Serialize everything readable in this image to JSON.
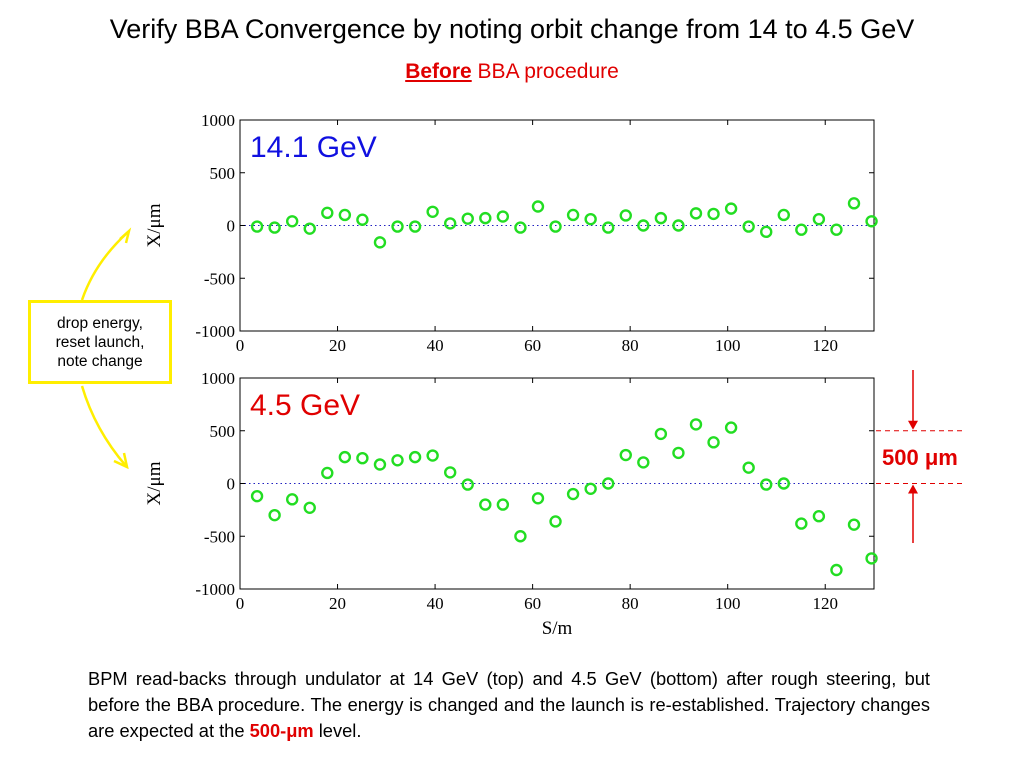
{
  "header": {
    "title": "Verify BBA Convergence by noting orbit change from 14 to 4.5 GeV",
    "subtitle_emph": "Before",
    "subtitle_rest": " BBA procedure"
  },
  "callout": {
    "lines": [
      "drop energy,",
      "reset launch,",
      "note change"
    ],
    "color": "#ffee00"
  },
  "scale_marker": {
    "label_num": "500 ",
    "label_unit": "μm",
    "color": "#e00000",
    "span_um": 500
  },
  "caption": {
    "text_before": "BPM read-backs through undulator at 14 GeV (top) and 4.5 GeV (bottom) after rough steering, but before the BBA procedure.  The energy is changed and the launch is re-established.  Trajectory changes are expected at the ",
    "highlight": "500-μm",
    "text_after": " level."
  },
  "chart_data": [
    {
      "type": "scatter",
      "annotation": "14.1 GeV",
      "annotation_color": "#1010e0",
      "marker_color": "#22dd22",
      "ylabel": "X/μm",
      "xlim": [
        0,
        130
      ],
      "ylim": [
        -1000,
        1000
      ],
      "xticks": [
        0,
        20,
        40,
        60,
        80,
        100,
        120
      ],
      "yticks": [
        1000,
        500,
        0,
        -500,
        -1000
      ],
      "zero_line": "dotted blue",
      "x": [
        3.5,
        7.1,
        10.7,
        14.3,
        17.9,
        21.5,
        25.1,
        28.7,
        32.3,
        35.9,
        39.5,
        43.1,
        46.7,
        50.3,
        53.9,
        57.5,
        61.1,
        64.7,
        68.3,
        71.9,
        75.5,
        79.1,
        82.7,
        86.3,
        89.9,
        93.5,
        97.1,
        100.7,
        104.3,
        107.9,
        111.5,
        115.1,
        118.7,
        122.3,
        125.9,
        129.5
      ],
      "y": [
        -10,
        -20,
        40,
        -30,
        120,
        100,
        55,
        -160,
        -10,
        -10,
        130,
        20,
        65,
        70,
        85,
        -20,
        180,
        -10,
        100,
        60,
        -20,
        95,
        0,
        70,
        0,
        115,
        110,
        160,
        -10,
        -60,
        100,
        -40,
        60,
        -40,
        210,
        40
      ]
    },
    {
      "type": "scatter",
      "annotation": "4.5 GeV",
      "annotation_color": "#e00000",
      "marker_color": "#22dd22",
      "xlabel": "S/m",
      "ylabel": "X/μm",
      "xlim": [
        0,
        130
      ],
      "ylim": [
        -1000,
        1000
      ],
      "xticks": [
        0,
        20,
        40,
        60,
        80,
        100,
        120
      ],
      "yticks": [
        1000,
        500,
        0,
        -500,
        -1000
      ],
      "zero_line": "dotted blue",
      "x": [
        3.5,
        7.1,
        10.7,
        14.3,
        17.9,
        21.5,
        25.1,
        28.7,
        32.3,
        35.9,
        39.5,
        43.1,
        46.7,
        50.3,
        53.9,
        57.5,
        61.1,
        64.7,
        68.3,
        71.9,
        75.5,
        79.1,
        82.7,
        86.3,
        89.9,
        93.5,
        97.1,
        100.7,
        104.3,
        107.9,
        111.5,
        115.1,
        118.7,
        122.3,
        125.9,
        129.5
      ],
      "y": [
        -120,
        -300,
        -150,
        -230,
        100,
        250,
        240,
        180,
        220,
        250,
        265,
        105,
        -10,
        -200,
        -200,
        -500,
        -140,
        -360,
        -100,
        -50,
        0,
        270,
        200,
        470,
        290,
        560,
        390,
        530,
        150,
        -10,
        0,
        -380,
        -310,
        -820,
        -390,
        -710
      ]
    }
  ]
}
